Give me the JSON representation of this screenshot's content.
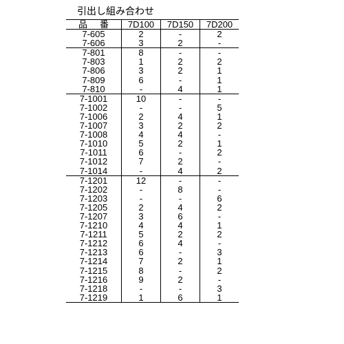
{
  "title": "引出し組み合わせ",
  "columns": [
    "品番",
    "7D100",
    "7D150",
    "7D200"
  ],
  "groups": [
    {
      "rows": [
        [
          "7-605",
          "2",
          "-",
          "2"
        ],
        [
          "7-606",
          "3",
          "2",
          "-"
        ]
      ]
    },
    {
      "rows": [
        [
          "7-801",
          "8",
          "-",
          "-"
        ],
        [
          "7-803",
          "1",
          "2",
          "2"
        ],
        [
          "7-806",
          "3",
          "2",
          "1"
        ],
        [
          "7-809",
          "6",
          "-",
          "1"
        ],
        [
          "7-810",
          "-",
          "4",
          "1"
        ]
      ]
    },
    {
      "rows": [
        [
          "7-1001",
          "10",
          "-",
          "-"
        ],
        [
          "7-1002",
          "-",
          "-",
          "5"
        ],
        [
          "7-1006",
          "2",
          "4",
          "1"
        ],
        [
          "7-1007",
          "3",
          "2",
          "2"
        ],
        [
          "7-1008",
          "4",
          "4",
          "-"
        ],
        [
          "7-1010",
          "5",
          "2",
          "1"
        ],
        [
          "7-1011",
          "6",
          "-",
          "2"
        ],
        [
          "7-1012",
          "7",
          "2",
          "-"
        ],
        [
          "7-1014",
          "-",
          "4",
          "2"
        ]
      ]
    },
    {
      "rows": [
        [
          "7-1201",
          "12",
          "-",
          "-"
        ],
        [
          "7-1202",
          "-",
          "8",
          "-"
        ],
        [
          "7-1203",
          "-",
          "-",
          "6"
        ],
        [
          "7-1205",
          "2",
          "4",
          "2"
        ],
        [
          "7-1207",
          "3",
          "6",
          "-"
        ],
        [
          "7-1210",
          "4",
          "4",
          "1"
        ],
        [
          "7-1211",
          "5",
          "2",
          "2"
        ],
        [
          "7-1212",
          "6",
          "4",
          "-"
        ],
        [
          "7-1213",
          "6",
          "-",
          "3"
        ],
        [
          "7-1214",
          "7",
          "2",
          "1"
        ],
        [
          "7-1215",
          "8",
          "-",
          "2"
        ],
        [
          "7-1216",
          "9",
          "2",
          "-"
        ],
        [
          "7-1218",
          "-",
          "-",
          "3"
        ],
        [
          "7-1219",
          "1",
          "6",
          "1"
        ]
      ]
    }
  ]
}
